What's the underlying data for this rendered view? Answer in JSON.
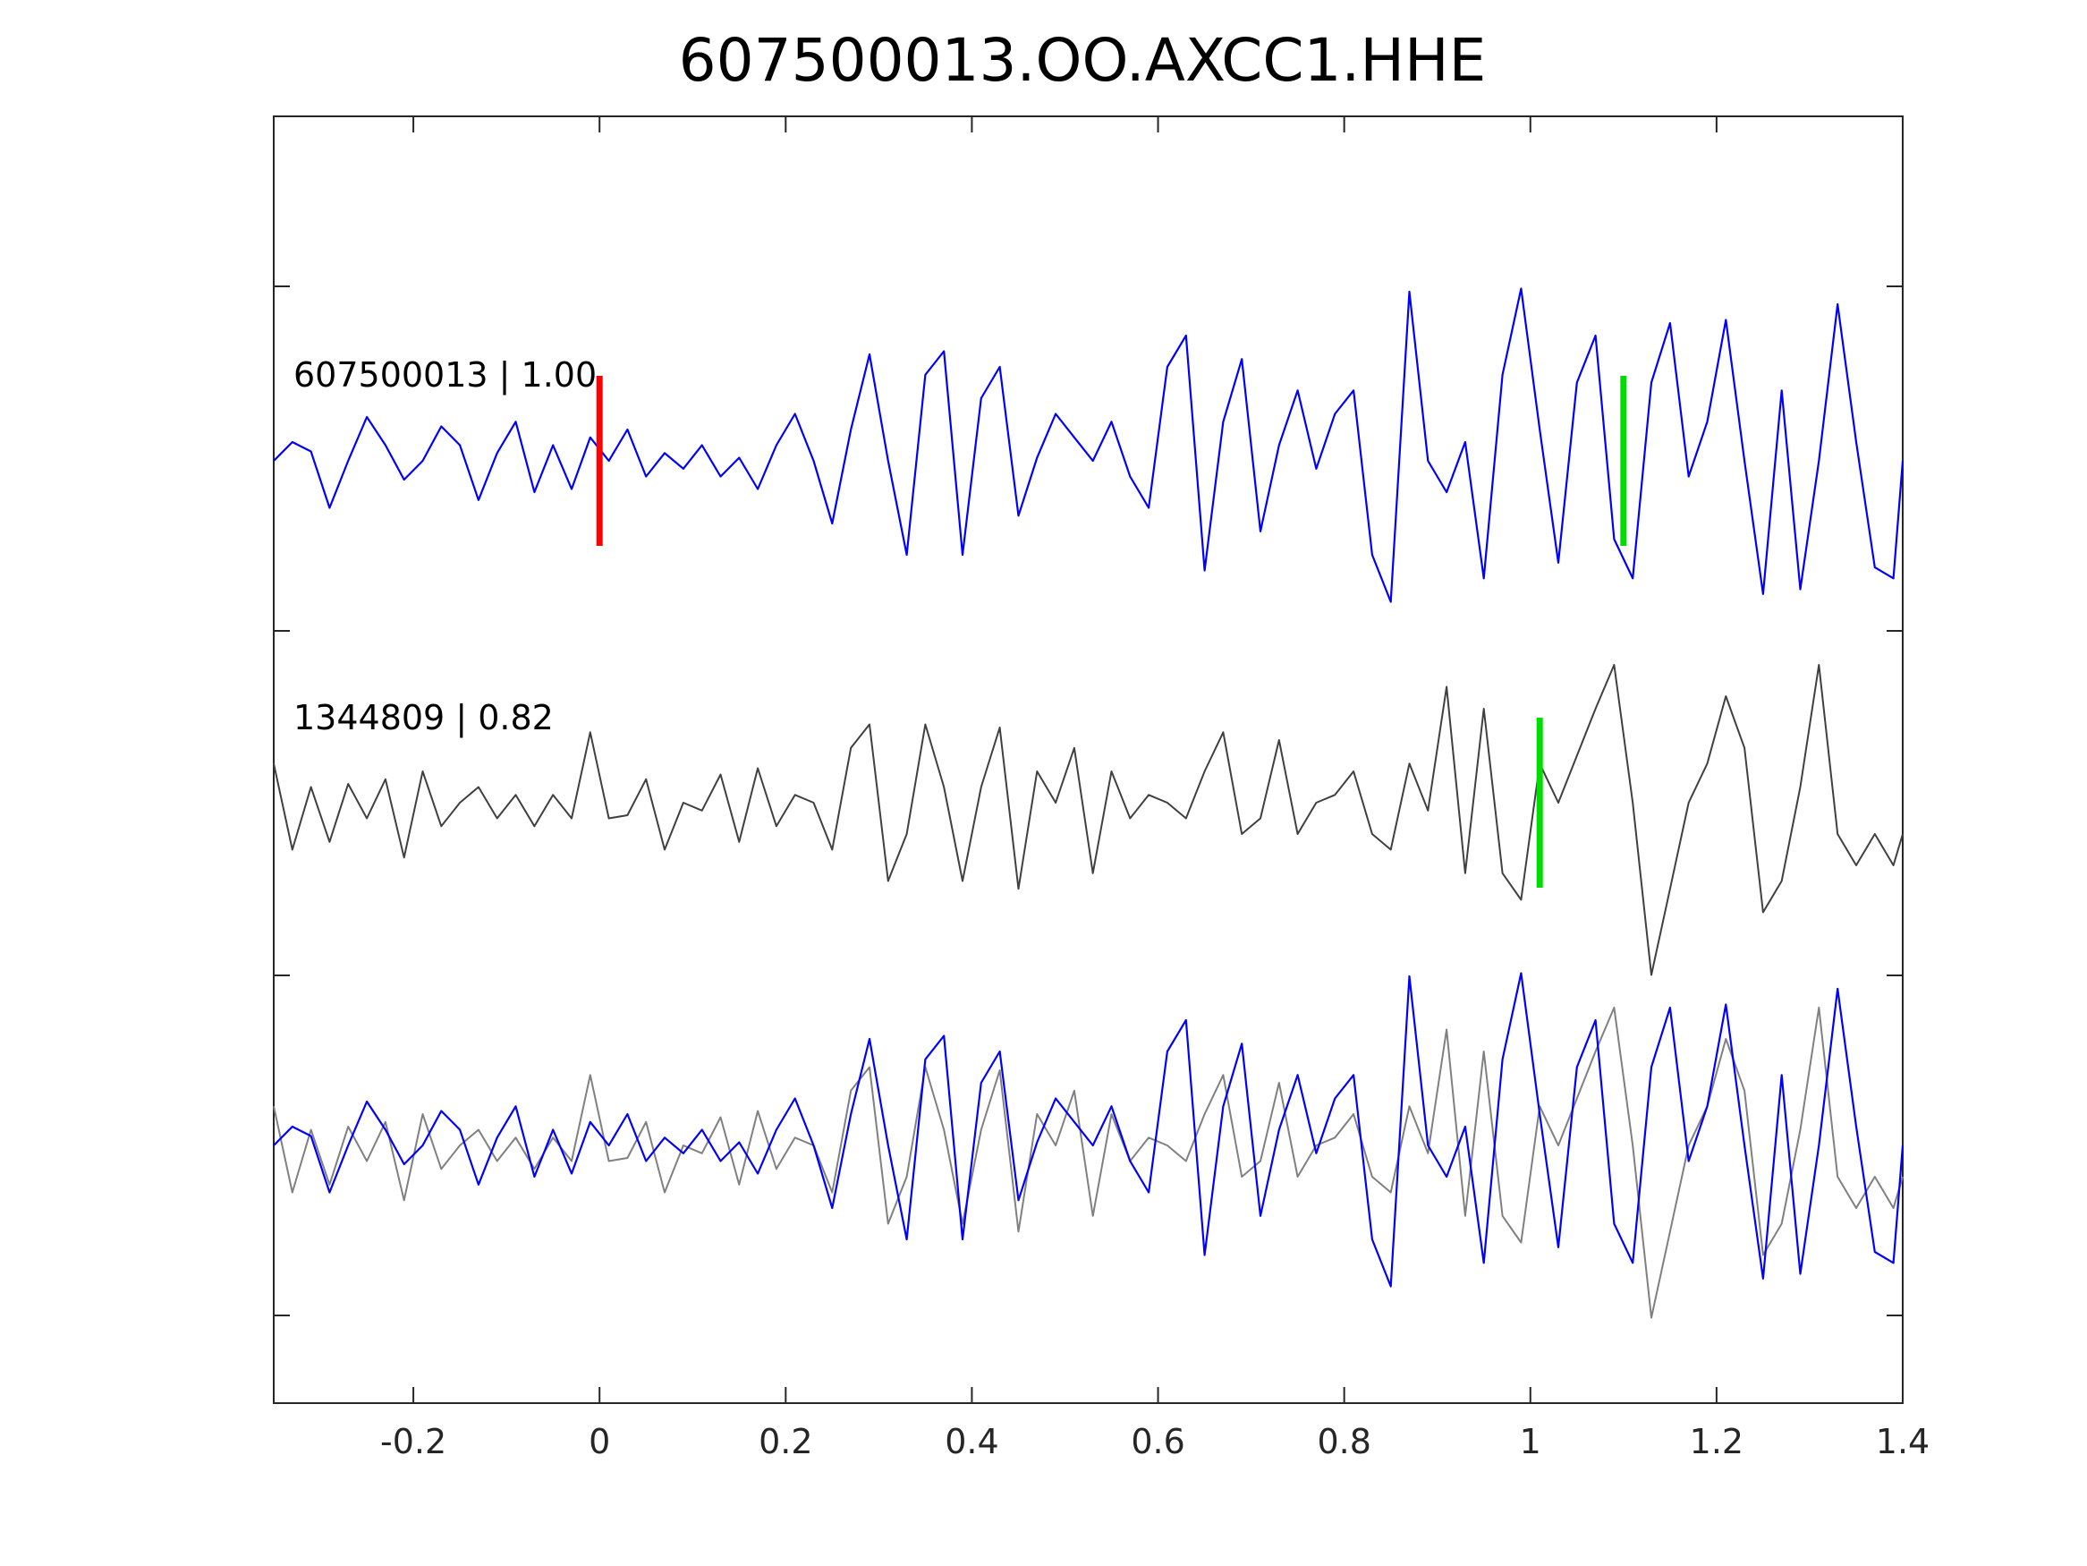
{
  "title": "607500013.OO.AXCC1.HHE",
  "chart_data": {
    "type": "line",
    "title": "607500013.OO.AXCC1.HHE",
    "xlabel": "",
    "ylabel": "",
    "xlim": [
      -0.35,
      1.4
    ],
    "x_ticks": [
      -0.2,
      0,
      0.2,
      0.4,
      0.6,
      0.8,
      1,
      1.2,
      1.4
    ],
    "x_tick_labels": [
      "-0.2",
      "0",
      "0.2",
      "0.4",
      "0.6",
      "0.8",
      "1",
      "1.2",
      "1.4"
    ],
    "y_ticks_labeled": false,
    "grid": false,
    "annotations": [
      {
        "text": "607500013 | 1.00",
        "panel": "top"
      },
      {
        "text": "1344809 | 0.82",
        "panel": "middle"
      }
    ],
    "series": [
      {
        "panel": "top",
        "color": "#0000ff",
        "x": [
          -0.35,
          -0.33,
          -0.31,
          -0.29,
          -0.27,
          -0.25,
          -0.23,
          -0.21,
          -0.19,
          -0.17,
          -0.15,
          -0.13,
          -0.11,
          -0.09,
          -0.07,
          -0.05,
          -0.03,
          -0.01,
          0.01,
          0.03,
          0.05,
          0.07,
          0.09,
          0.11,
          0.13,
          0.15,
          0.17,
          0.19,
          0.21,
          0.23,
          0.25,
          0.27,
          0.29,
          0.31,
          0.33,
          0.35,
          0.37,
          0.39,
          0.41,
          0.43,
          0.45,
          0.47,
          0.49,
          0.51,
          0.53,
          0.55,
          0.57,
          0.59,
          0.61,
          0.63,
          0.65,
          0.67,
          0.69,
          0.71,
          0.73,
          0.75,
          0.77,
          0.79,
          0.81,
          0.83,
          0.85,
          0.87,
          0.89,
          0.91,
          0.93,
          0.95,
          0.97,
          0.99,
          1.01,
          1.03,
          1.05,
          1.07,
          1.09,
          1.11,
          1.13,
          1.15,
          1.17,
          1.19,
          1.21,
          1.23,
          1.25,
          1.27,
          1.29,
          1.31,
          1.33,
          1.35,
          1.37,
          1.39,
          1.4
        ],
        "y": [
          0.0,
          0.12,
          0.06,
          -0.3,
          0.0,
          0.28,
          0.1,
          -0.12,
          0.0,
          0.22,
          0.1,
          -0.25,
          0.05,
          0.25,
          -0.2,
          0.1,
          -0.18,
          0.15,
          0.0,
          0.2,
          -0.1,
          0.05,
          -0.05,
          0.1,
          -0.1,
          0.02,
          -0.18,
          0.1,
          0.3,
          0.0,
          -0.4,
          0.2,
          0.68,
          0.0,
          -0.6,
          0.55,
          0.7,
          -0.6,
          0.4,
          0.6,
          -0.35,
          0.02,
          0.3,
          0.15,
          0.0,
          0.25,
          -0.1,
          -0.3,
          0.6,
          0.8,
          -0.7,
          0.25,
          0.65,
          -0.45,
          0.1,
          0.45,
          -0.05,
          0.3,
          0.45,
          -0.6,
          -0.9,
          1.08,
          0.0,
          -0.2,
          0.12,
          -0.75,
          0.55,
          1.1,
          0.2,
          -0.65,
          0.5,
          0.8,
          -0.5,
          -0.75,
          0.5,
          0.88,
          -0.1,
          0.25,
          0.9,
          0.0,
          -0.85,
          0.45,
          -0.82,
          0.0,
          1.0,
          0.12,
          -0.68,
          -0.75,
          0.0
        ]
      },
      {
        "panel": "middle",
        "color": "#404040",
        "x": [
          -0.35,
          -0.33,
          -0.31,
          -0.29,
          -0.27,
          -0.25,
          -0.23,
          -0.21,
          -0.19,
          -0.17,
          -0.15,
          -0.13,
          -0.11,
          -0.09,
          -0.07,
          -0.05,
          -0.03,
          -0.01,
          0.01,
          0.03,
          0.05,
          0.07,
          0.09,
          0.11,
          0.13,
          0.15,
          0.17,
          0.19,
          0.21,
          0.23,
          0.25,
          0.27,
          0.29,
          0.31,
          0.33,
          0.35,
          0.37,
          0.39,
          0.41,
          0.43,
          0.45,
          0.47,
          0.49,
          0.51,
          0.53,
          0.55,
          0.57,
          0.59,
          0.61,
          0.63,
          0.65,
          0.67,
          0.69,
          0.71,
          0.73,
          0.75,
          0.77,
          0.79,
          0.81,
          0.83,
          0.85,
          0.87,
          0.89,
          0.91,
          0.93,
          0.95,
          0.97,
          0.99,
          1.01,
          1.03,
          1.05,
          1.07,
          1.09,
          1.11,
          1.13,
          1.15,
          1.17,
          1.19,
          1.21,
          1.23,
          1.25,
          1.27,
          1.29,
          1.31,
          1.33,
          1.35,
          1.37,
          1.39,
          1.4
        ],
        "y": [
          0.25,
          -0.3,
          0.1,
          -0.25,
          0.12,
          -0.1,
          0.15,
          -0.35,
          0.2,
          -0.15,
          0.0,
          0.1,
          -0.1,
          0.05,
          -0.15,
          0.05,
          -0.1,
          0.45,
          -0.1,
          -0.08,
          0.15,
          -0.3,
          0.0,
          -0.05,
          0.18,
          -0.25,
          0.22,
          -0.15,
          0.05,
          0.0,
          -0.3,
          0.35,
          0.5,
          -0.5,
          -0.2,
          0.5,
          0.1,
          -0.5,
          0.1,
          0.48,
          -0.55,
          0.2,
          0.0,
          0.35,
          -0.45,
          0.2,
          -0.1,
          0.05,
          0.0,
          -0.1,
          0.2,
          0.45,
          -0.2,
          -0.1,
          0.4,
          -0.2,
          0.0,
          0.05,
          0.2,
          -0.2,
          -0.3,
          0.25,
          -0.05,
          0.74,
          -0.45,
          0.6,
          -0.45,
          -0.62,
          0.25,
          0.0,
          0.3,
          0.6,
          0.88,
          0.0,
          -1.1,
          -0.55,
          0.0,
          0.25,
          0.68,
          0.35,
          -0.7,
          -0.5,
          0.1,
          0.88,
          -0.2,
          -0.4,
          -0.2,
          -0.4,
          -0.2
        ]
      },
      {
        "panel": "bottom",
        "color": "#808080",
        "x": [
          -0.35,
          -0.33,
          -0.31,
          -0.29,
          -0.27,
          -0.25,
          -0.23,
          -0.21,
          -0.19,
          -0.17,
          -0.15,
          -0.13,
          -0.11,
          -0.09,
          -0.07,
          -0.05,
          -0.03,
          -0.01,
          0.01,
          0.03,
          0.05,
          0.07,
          0.09,
          0.11,
          0.13,
          0.15,
          0.17,
          0.19,
          0.21,
          0.23,
          0.25,
          0.27,
          0.29,
          0.31,
          0.33,
          0.35,
          0.37,
          0.39,
          0.41,
          0.43,
          0.45,
          0.47,
          0.49,
          0.51,
          0.53,
          0.55,
          0.57,
          0.59,
          0.61,
          0.63,
          0.65,
          0.67,
          0.69,
          0.71,
          0.73,
          0.75,
          0.77,
          0.79,
          0.81,
          0.83,
          0.85,
          0.87,
          0.89,
          0.91,
          0.93,
          0.95,
          0.97,
          0.99,
          1.01,
          1.03,
          1.05,
          1.07,
          1.09,
          1.11,
          1.13,
          1.15,
          1.17,
          1.19,
          1.21,
          1.23,
          1.25,
          1.27,
          1.29,
          1.31,
          1.33,
          1.35,
          1.37,
          1.39,
          1.4
        ],
        "y": [
          0.25,
          -0.3,
          0.1,
          -0.25,
          0.12,
          -0.1,
          0.15,
          -0.35,
          0.2,
          -0.15,
          0.0,
          0.1,
          -0.1,
          0.05,
          -0.15,
          0.05,
          -0.1,
          0.45,
          -0.1,
          -0.08,
          0.15,
          -0.3,
          0.0,
          -0.05,
          0.18,
          -0.25,
          0.22,
          -0.15,
          0.05,
          0.0,
          -0.3,
          0.35,
          0.5,
          -0.5,
          -0.2,
          0.5,
          0.1,
          -0.5,
          0.1,
          0.48,
          -0.55,
          0.2,
          0.0,
          0.35,
          -0.45,
          0.2,
          -0.1,
          0.05,
          0.0,
          -0.1,
          0.2,
          0.45,
          -0.2,
          -0.1,
          0.4,
          -0.2,
          0.0,
          0.05,
          0.2,
          -0.2,
          -0.3,
          0.25,
          -0.05,
          0.74,
          -0.45,
          0.6,
          -0.45,
          -0.62,
          0.25,
          0.0,
          0.3,
          0.6,
          0.88,
          0.0,
          -1.1,
          -0.55,
          0.0,
          0.25,
          0.68,
          0.35,
          -0.7,
          -0.5,
          0.1,
          0.88,
          -0.2,
          -0.4,
          -0.2,
          -0.4,
          -0.2
        ]
      },
      {
        "panel": "bottom",
        "color": "#0000ff",
        "x": [
          -0.35,
          -0.33,
          -0.31,
          -0.29,
          -0.27,
          -0.25,
          -0.23,
          -0.21,
          -0.19,
          -0.17,
          -0.15,
          -0.13,
          -0.11,
          -0.09,
          -0.07,
          -0.05,
          -0.03,
          -0.01,
          0.01,
          0.03,
          0.05,
          0.07,
          0.09,
          0.11,
          0.13,
          0.15,
          0.17,
          0.19,
          0.21,
          0.23,
          0.25,
          0.27,
          0.29,
          0.31,
          0.33,
          0.35,
          0.37,
          0.39,
          0.41,
          0.43,
          0.45,
          0.47,
          0.49,
          0.51,
          0.53,
          0.55,
          0.57,
          0.59,
          0.61,
          0.63,
          0.65,
          0.67,
          0.69,
          0.71,
          0.73,
          0.75,
          0.77,
          0.79,
          0.81,
          0.83,
          0.85,
          0.87,
          0.89,
          0.91,
          0.93,
          0.95,
          0.97,
          0.99,
          1.01,
          1.03,
          1.05,
          1.07,
          1.09,
          1.11,
          1.13,
          1.15,
          1.17,
          1.19,
          1.21,
          1.23,
          1.25,
          1.27,
          1.29,
          1.31,
          1.33,
          1.35,
          1.37,
          1.39,
          1.4
        ],
        "y": [
          0.0,
          0.12,
          0.06,
          -0.3,
          0.0,
          0.28,
          0.1,
          -0.12,
          0.0,
          0.22,
          0.1,
          -0.25,
          0.05,
          0.25,
          -0.2,
          0.1,
          -0.18,
          0.15,
          0.0,
          0.2,
          -0.1,
          0.05,
          -0.05,
          0.1,
          -0.1,
          0.02,
          -0.18,
          0.1,
          0.3,
          0.0,
          -0.4,
          0.2,
          0.68,
          0.0,
          -0.6,
          0.55,
          0.7,
          -0.6,
          0.4,
          0.6,
          -0.35,
          0.02,
          0.3,
          0.15,
          0.0,
          0.25,
          -0.1,
          -0.3,
          0.6,
          0.8,
          -0.7,
          0.25,
          0.65,
          -0.45,
          0.1,
          0.45,
          -0.05,
          0.3,
          0.45,
          -0.6,
          -0.9,
          1.08,
          0.0,
          -0.2,
          0.12,
          -0.75,
          0.55,
          1.1,
          0.2,
          -0.65,
          0.5,
          0.8,
          -0.5,
          -0.75,
          0.5,
          0.88,
          -0.1,
          0.25,
          0.9,
          0.0,
          -0.85,
          0.45,
          -0.82,
          0.0,
          1.0,
          0.12,
          -0.68,
          -0.75,
          0.0
        ]
      }
    ],
    "markers": [
      {
        "panel": "top",
        "x": 0.0,
        "color": "#ff0000"
      },
      {
        "panel": "top",
        "x": 1.1,
        "color": "#00dd00"
      },
      {
        "panel": "middle",
        "x": 1.01,
        "color": "#00dd00"
      }
    ]
  }
}
